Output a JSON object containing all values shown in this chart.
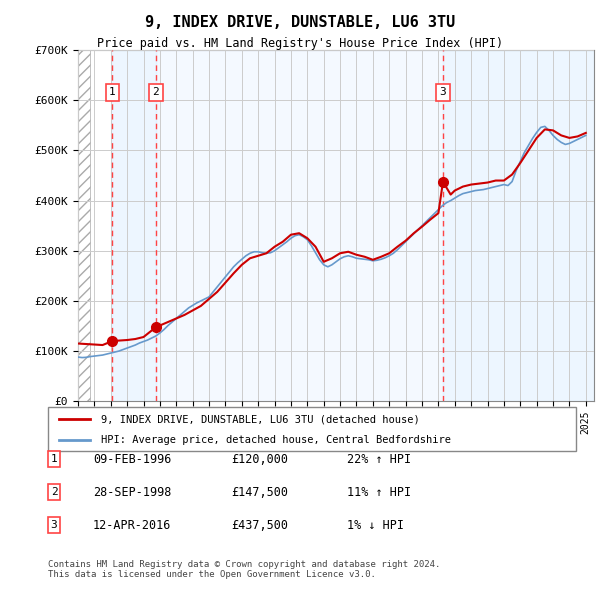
{
  "title": "9, INDEX DRIVE, DUNSTABLE, LU6 3TU",
  "subtitle": "Price paid vs. HM Land Registry's House Price Index (HPI)",
  "ylabel_ticks": [
    "£0",
    "£100K",
    "£200K",
    "£300K",
    "£400K",
    "£500K",
    "£600K",
    "£700K"
  ],
  "ytick_values": [
    0,
    100000,
    200000,
    300000,
    400000,
    500000,
    600000,
    700000
  ],
  "ylim": [
    0,
    700000
  ],
  "xlim_start": 1994.0,
  "xlim_end": 2025.5,
  "transactions": [
    {
      "num": 1,
      "date": "09-FEB-1996",
      "year": 1996.1,
      "price": 120000,
      "pct": "22%",
      "dir": "↑"
    },
    {
      "num": 2,
      "date": "28-SEP-1998",
      "year": 1998.75,
      "price": 147500,
      "pct": "11%",
      "dir": "↑"
    },
    {
      "num": 3,
      "date": "12-APR-2016",
      "year": 2016.28,
      "price": 437500,
      "pct": "1%",
      "dir": "↓"
    }
  ],
  "hpi_color": "#6699cc",
  "price_color": "#cc0000",
  "vline_color": "#ff4444",
  "grid_color": "#cccccc",
  "bg_shaded": "#ddeeff",
  "legend_label_price": "9, INDEX DRIVE, DUNSTABLE, LU6 3TU (detached house)",
  "legend_label_hpi": "HPI: Average price, detached house, Central Bedfordshire",
  "footer": "Contains HM Land Registry data © Crown copyright and database right 2024.\nThis data is licensed under the Open Government Licence v3.0.",
  "hpi_data_x": [
    1994.0,
    1994.25,
    1994.5,
    1994.75,
    1995.0,
    1995.25,
    1995.5,
    1995.75,
    1996.0,
    1996.25,
    1996.5,
    1996.75,
    1997.0,
    1997.25,
    1997.5,
    1997.75,
    1998.0,
    1998.25,
    1998.5,
    1998.75,
    1999.0,
    1999.25,
    1999.5,
    1999.75,
    2000.0,
    2000.25,
    2000.5,
    2000.75,
    2001.0,
    2001.25,
    2001.5,
    2001.75,
    2002.0,
    2002.25,
    2002.5,
    2002.75,
    2003.0,
    2003.25,
    2003.5,
    2003.75,
    2004.0,
    2004.25,
    2004.5,
    2004.75,
    2005.0,
    2005.25,
    2005.5,
    2005.75,
    2006.0,
    2006.25,
    2006.5,
    2006.75,
    2007.0,
    2007.25,
    2007.5,
    2007.75,
    2008.0,
    2008.25,
    2008.5,
    2008.75,
    2009.0,
    2009.25,
    2009.5,
    2009.75,
    2010.0,
    2010.25,
    2010.5,
    2010.75,
    2011.0,
    2011.25,
    2011.5,
    2011.75,
    2012.0,
    2012.25,
    2012.5,
    2012.75,
    2013.0,
    2013.25,
    2013.5,
    2013.75,
    2014.0,
    2014.25,
    2014.5,
    2014.75,
    2015.0,
    2015.25,
    2015.5,
    2015.75,
    2016.0,
    2016.25,
    2016.5,
    2016.75,
    2017.0,
    2017.25,
    2017.5,
    2017.75,
    2018.0,
    2018.25,
    2018.5,
    2018.75,
    2019.0,
    2019.25,
    2019.5,
    2019.75,
    2020.0,
    2020.25,
    2020.5,
    2020.75,
    2021.0,
    2021.25,
    2021.5,
    2021.75,
    2022.0,
    2022.25,
    2022.5,
    2022.75,
    2023.0,
    2023.25,
    2023.5,
    2023.75,
    2024.0,
    2024.25,
    2024.5,
    2024.75,
    2025.0
  ],
  "hpi_data_y": [
    88000,
    87000,
    87500,
    89000,
    90000,
    91000,
    92000,
    94000,
    96000,
    98000,
    100000,
    103000,
    106000,
    109000,
    112000,
    116000,
    119000,
    122000,
    126000,
    130000,
    136000,
    143000,
    151000,
    158000,
    165000,
    172000,
    179000,
    186000,
    191000,
    196000,
    200000,
    204000,
    208000,
    218000,
    228000,
    238000,
    248000,
    258000,
    268000,
    276000,
    283000,
    290000,
    295000,
    298000,
    298000,
    296000,
    295000,
    296000,
    300000,
    306000,
    312000,
    318000,
    325000,
    330000,
    332000,
    328000,
    322000,
    310000,
    296000,
    282000,
    272000,
    268000,
    272000,
    278000,
    284000,
    288000,
    290000,
    288000,
    285000,
    284000,
    283000,
    282000,
    280000,
    281000,
    283000,
    286000,
    290000,
    295000,
    302000,
    310000,
    318000,
    326000,
    334000,
    342000,
    350000,
    358000,
    366000,
    374000,
    382000,
    390000,
    396000,
    400000,
    405000,
    410000,
    414000,
    416000,
    418000,
    420000,
    421000,
    422000,
    424000,
    426000,
    428000,
    430000,
    432000,
    430000,
    438000,
    460000,
    478000,
    496000,
    510000,
    524000,
    536000,
    546000,
    548000,
    540000,
    530000,
    522000,
    516000,
    512000,
    514000,
    518000,
    522000,
    526000,
    530000
  ],
  "price_line_x": [
    1994.0,
    1995.5,
    1996.1,
    1997.0,
    1997.5,
    1998.0,
    1998.75,
    1999.5,
    2000.5,
    2001.5,
    2002.5,
    2003.5,
    2004.0,
    2004.5,
    2005.0,
    2005.5,
    2006.0,
    2006.5,
    2007.0,
    2007.5,
    2008.0,
    2008.5,
    2009.0,
    2009.5,
    2010.0,
    2010.5,
    2011.0,
    2011.5,
    2012.0,
    2012.5,
    2013.0,
    2013.5,
    2014.0,
    2014.5,
    2015.0,
    2015.5,
    2016.0,
    2016.28,
    2016.75,
    2017.0,
    2017.5,
    2018.0,
    2018.5,
    2019.0,
    2019.5,
    2020.0,
    2020.5,
    2021.0,
    2021.5,
    2022.0,
    2022.5,
    2023.0,
    2023.5,
    2024.0,
    2024.5,
    2025.0
  ],
  "price_line_y": [
    115000,
    112000,
    120000,
    122000,
    124000,
    128000,
    147500,
    158000,
    172000,
    190000,
    218000,
    255000,
    272000,
    285000,
    290000,
    295000,
    308000,
    318000,
    332000,
    335000,
    325000,
    308000,
    278000,
    285000,
    295000,
    298000,
    292000,
    288000,
    282000,
    288000,
    295000,
    308000,
    320000,
    335000,
    348000,
    362000,
    375000,
    437500,
    412000,
    420000,
    428000,
    432000,
    434000,
    436000,
    440000,
    440000,
    452000,
    475000,
    500000,
    525000,
    542000,
    540000,
    530000,
    525000,
    528000,
    535000
  ]
}
